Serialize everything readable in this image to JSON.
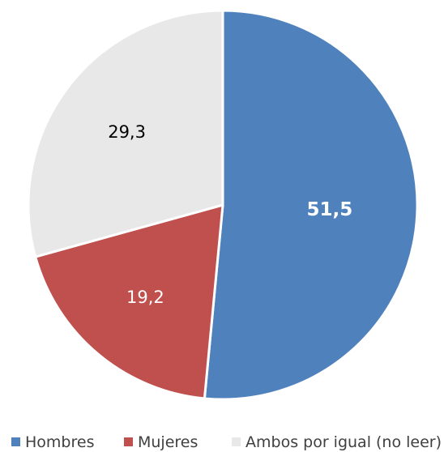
{
  "chart_data": {
    "type": "pie",
    "title": "",
    "categories": [
      "Hombres",
      "Mujeres",
      "Ambos por igual (no leer)"
    ],
    "values": [
      51.5,
      19.2,
      29.3
    ],
    "value_labels": [
      "51,5",
      "19,2",
      "29,3"
    ],
    "colors": [
      "#4f81bd",
      "#c0504d",
      "#e8e8e8"
    ],
    "label_colors": [
      "#ffffff",
      "#ffffff",
      "#000000"
    ],
    "start_angle_deg": 0,
    "direction": "clockwise",
    "legend": {
      "position": "bottom",
      "entries": [
        "Hombres",
        "Mujeres",
        "Ambos por igual (no leer)"
      ]
    }
  }
}
